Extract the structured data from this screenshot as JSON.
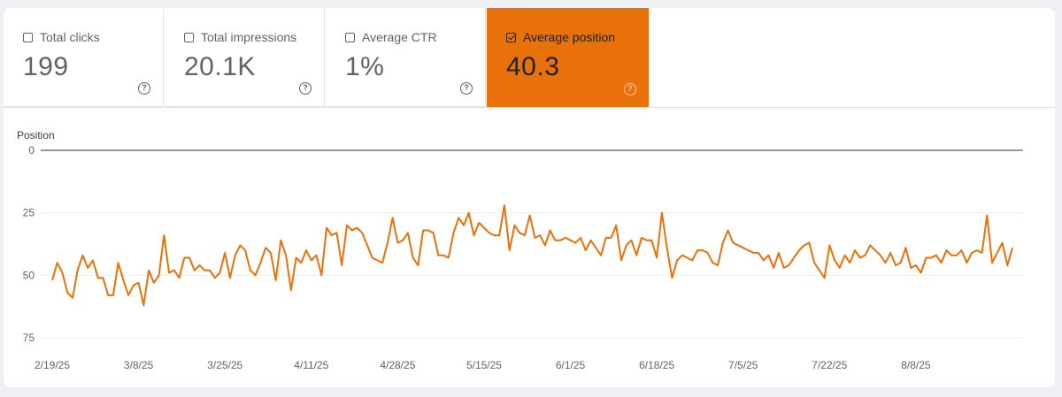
{
  "metrics": [
    {
      "label": "Total clicks",
      "value": "199",
      "checked": false
    },
    {
      "label": "Total impressions",
      "value": "20.1K",
      "checked": false
    },
    {
      "label": "Average CTR",
      "value": "1%",
      "checked": false
    },
    {
      "label": "Average position",
      "value": "40.3",
      "checked": true
    }
  ],
  "help_glyph": "?",
  "colors": {
    "accent": "#e8710a",
    "line": "#e8710a",
    "grid": "#eeeeee"
  },
  "chart_data": {
    "type": "line",
    "ylabel": "Position",
    "y_inverted": true,
    "ylim": [
      0,
      75
    ],
    "yticks": [
      0,
      25,
      50,
      75
    ],
    "xtick_labels": [
      "2/19/25",
      "3/8/25",
      "3/25/25",
      "4/11/25",
      "4/28/25",
      "5/15/25",
      "6/1/25",
      "6/18/25",
      "7/5/25",
      "7/22/25",
      "8/8/25"
    ],
    "series": [
      {
        "values": [
          52,
          45,
          49,
          57,
          59,
          48,
          42,
          47,
          44,
          51,
          51,
          58,
          58,
          45,
          52,
          58,
          54,
          53,
          62,
          48,
          53,
          50,
          34,
          49,
          48,
          51,
          43,
          43,
          48,
          46,
          48,
          48,
          51,
          49,
          41,
          51,
          42,
          38,
          40,
          48,
          50,
          45,
          39,
          41,
          52,
          36,
          42,
          56,
          43,
          45,
          40,
          44,
          42,
          50,
          31,
          34,
          33,
          46,
          30,
          32,
          31,
          33,
          38,
          43,
          44,
          45,
          37,
          27,
          37,
          36,
          33,
          43,
          46,
          32,
          32,
          33,
          42,
          42,
          43,
          33,
          27,
          30,
          25,
          34,
          29,
          31,
          33,
          34,
          34,
          22,
          40,
          30,
          33,
          34,
          26,
          35,
          34,
          38,
          32,
          36,
          36,
          35,
          36,
          37,
          35,
          40,
          36,
          39,
          42,
          35,
          35,
          30,
          44,
          38,
          36,
          42,
          35,
          36,
          36,
          43,
          25,
          39,
          51,
          44,
          42,
          43,
          44,
          40,
          40,
          41,
          45,
          46,
          37,
          32,
          37,
          38,
          39,
          40,
          41,
          41,
          44,
          42,
          47,
          41,
          47,
          46,
          43,
          40,
          38,
          37,
          45,
          48,
          51,
          38,
          44,
          47,
          42,
          45,
          40,
          43,
          42,
          38,
          40,
          42,
          45,
          41,
          46,
          45,
          39,
          47,
          46,
          49,
          43,
          43,
          42,
          45,
          40,
          42,
          42,
          40,
          45,
          41,
          40,
          41,
          26,
          45,
          41,
          37,
          46,
          39
        ]
      }
    ]
  }
}
